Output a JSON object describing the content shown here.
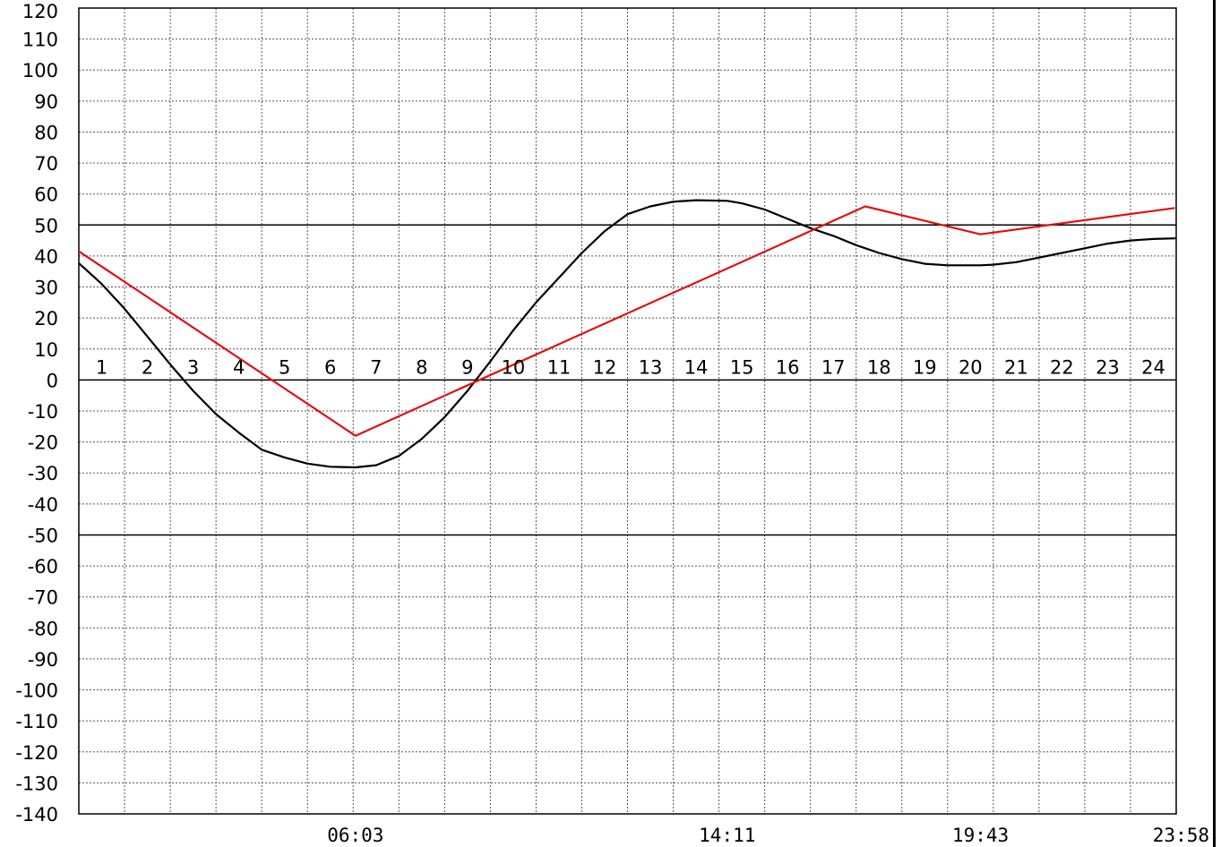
{
  "chart_data": {
    "type": "line",
    "title": "",
    "xlabel": "",
    "ylabel": "",
    "xlim": [
      0,
      24
    ],
    "ylim": [
      -140,
      120
    ],
    "yticks": [
      120,
      110,
      100,
      90,
      80,
      70,
      60,
      50,
      40,
      30,
      20,
      10,
      0,
      -10,
      -20,
      -30,
      -40,
      -50,
      -60,
      -70,
      -80,
      -90,
      -100,
      -110,
      -120,
      -130,
      -140
    ],
    "hour_labels": [
      "1",
      "2",
      "3",
      "4",
      "5",
      "6",
      "7",
      "8",
      "9",
      "10",
      "11",
      "12",
      "13",
      "14",
      "15",
      "16",
      "17",
      "18",
      "19",
      "20",
      "21",
      "22",
      "23",
      "24"
    ],
    "time_labels": [
      {
        "x": 6.05,
        "label": "06:03"
      },
      {
        "x": 14.18,
        "label": "14:11"
      },
      {
        "x": 19.72,
        "label": "19:43"
      },
      {
        "x": 23.97,
        "label": "23:58"
      }
    ],
    "reference_lines": [
      50,
      0,
      -50
    ],
    "grid": true,
    "series": [
      {
        "color": "#000000",
        "x": [
          0,
          0.5,
          1,
          1.5,
          2,
          2.5,
          3,
          3.5,
          4,
          4.5,
          5,
          5.5,
          6.05,
          6.5,
          7,
          7.5,
          8,
          8.5,
          9,
          9.5,
          10,
          10.5,
          11,
          11.5,
          12,
          12.5,
          13,
          13.5,
          14.18,
          14.5,
          15,
          15.5,
          16,
          16.5,
          17,
          17.5,
          18,
          18.5,
          19,
          19.72,
          20,
          20.5,
          21,
          21.5,
          22,
          22.5,
          23,
          23.5,
          24
        ],
        "y": [
          37.7,
          31,
          23,
          14,
          5,
          -3.5,
          -11,
          -17,
          -22.5,
          -25,
          -27,
          -28,
          -28.2,
          -27.5,
          -24.5,
          -19,
          -12,
          -3.5,
          6,
          16,
          25,
          33,
          41,
          48,
          53.5,
          56,
          57.5,
          58,
          57.8,
          57,
          55,
          52,
          49,
          46.5,
          43.5,
          41,
          39,
          37.5,
          37,
          37,
          37.2,
          38,
          39.5,
          41,
          42.5,
          44,
          45,
          45.5,
          45.7
        ]
      },
      {
        "color": "#e01010",
        "x": [
          0,
          6.05,
          17.2,
          19.72,
          23.97
        ],
        "y": [
          41.5,
          -18,
          56,
          47,
          55.5
        ]
      }
    ]
  }
}
